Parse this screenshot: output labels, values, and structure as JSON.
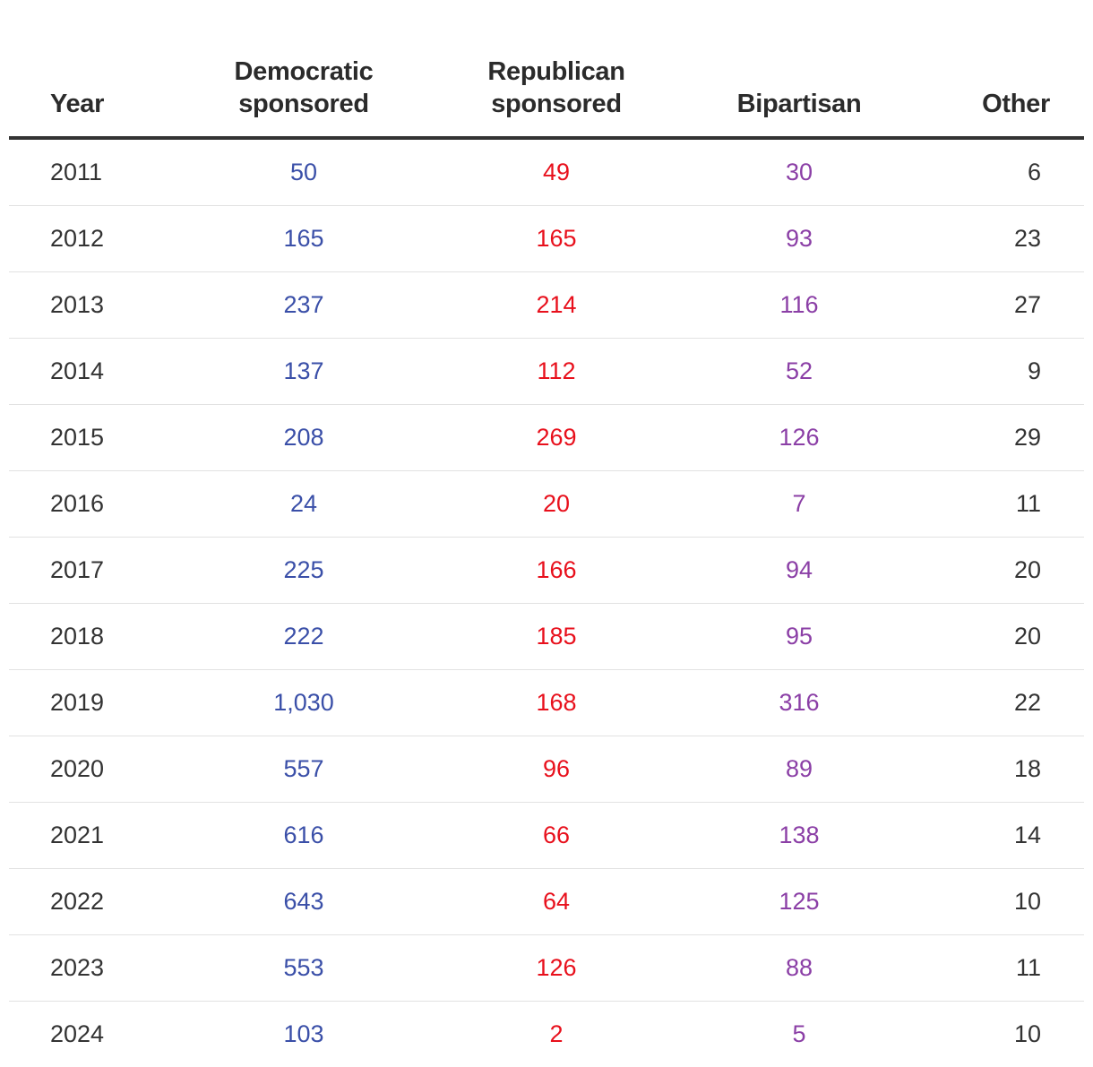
{
  "chart_data": {
    "type": "table",
    "columns": [
      {
        "key": "year",
        "label_lines": [
          "Year"
        ]
      },
      {
        "key": "democratic",
        "label_lines": [
          "Democratic",
          "sponsored"
        ]
      },
      {
        "key": "republican",
        "label_lines": [
          "Republican",
          "sponsored"
        ]
      },
      {
        "key": "bipartisan",
        "label_lines": [
          "Bipartisan"
        ]
      },
      {
        "key": "other",
        "label_lines": [
          "Other"
        ]
      }
    ],
    "colors": {
      "democratic": "#3a4fa8",
      "republican": "#e8101c",
      "bipartisan": "#8b3fa6",
      "other": "#333333",
      "year": "#333333"
    },
    "rows": [
      {
        "year": "2011",
        "democratic": "50",
        "republican": "49",
        "bipartisan": "30",
        "other": "6"
      },
      {
        "year": "2012",
        "democratic": "165",
        "republican": "165",
        "bipartisan": "93",
        "other": "23"
      },
      {
        "year": "2013",
        "democratic": "237",
        "republican": "214",
        "bipartisan": "116",
        "other": "27"
      },
      {
        "year": "2014",
        "democratic": "137",
        "republican": "112",
        "bipartisan": "52",
        "other": "9"
      },
      {
        "year": "2015",
        "democratic": "208",
        "republican": "269",
        "bipartisan": "126",
        "other": "29"
      },
      {
        "year": "2016",
        "democratic": "24",
        "republican": "20",
        "bipartisan": "7",
        "other": "11"
      },
      {
        "year": "2017",
        "democratic": "225",
        "republican": "166",
        "bipartisan": "94",
        "other": "20"
      },
      {
        "year": "2018",
        "democratic": "222",
        "republican": "185",
        "bipartisan": "95",
        "other": "20"
      },
      {
        "year": "2019",
        "democratic": "1,030",
        "republican": "168",
        "bipartisan": "316",
        "other": "22"
      },
      {
        "year": "2020",
        "democratic": "557",
        "republican": "96",
        "bipartisan": "89",
        "other": "18"
      },
      {
        "year": "2021",
        "democratic": "616",
        "republican": "66",
        "bipartisan": "138",
        "other": "14"
      },
      {
        "year": "2022",
        "democratic": "643",
        "republican": "64",
        "bipartisan": "125",
        "other": "10"
      },
      {
        "year": "2023",
        "democratic": "553",
        "republican": "126",
        "bipartisan": "88",
        "other": "11"
      },
      {
        "year": "2024",
        "democratic": "103",
        "republican": "2",
        "bipartisan": "5",
        "other": "10"
      }
    ]
  }
}
